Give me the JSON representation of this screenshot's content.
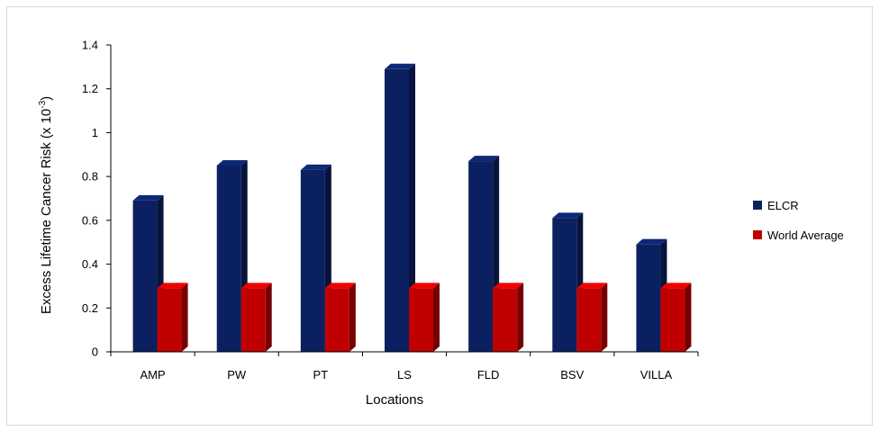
{
  "chart_data": {
    "type": "bar",
    "title": "",
    "xlabel": "Locations",
    "ylabel_main": "Excess Lifetime Cancer Risk (x 10",
    "ylabel_sup": "-3",
    "ylabel_close": ")",
    "categories": [
      "AMP",
      "PW",
      "PT",
      "LS",
      "FLD",
      "BSV",
      "VILLA"
    ],
    "series": [
      {
        "name": "ELCR",
        "color": "#0b2060",
        "values": [
          0.69,
          0.85,
          0.83,
          1.29,
          0.87,
          0.61,
          0.49
        ]
      },
      {
        "name": "World Average",
        "color": "#c00000",
        "values": [
          0.29,
          0.29,
          0.29,
          0.29,
          0.29,
          0.29,
          0.29
        ]
      }
    ],
    "ylim": [
      0,
      1.4
    ],
    "yticks": [
      "0",
      "0.2",
      "0.4",
      "0.6",
      "0.8",
      "1",
      "1.2",
      "1.4"
    ],
    "ytick_values": [
      0,
      0.2,
      0.4,
      0.6,
      0.8,
      1.0,
      1.2,
      1.4
    ],
    "grid": false,
    "legend_position": "right",
    "style": "3d-column"
  }
}
